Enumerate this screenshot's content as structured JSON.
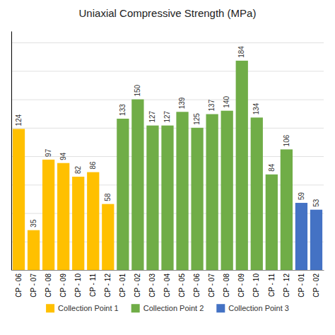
{
  "chart_data": {
    "type": "bar",
    "title": "Uniaxial Compressive Strength (MPa)",
    "categories": [
      "CP - 06",
      "CP - 07",
      "CP - 08",
      "CP - 09",
      "CP - 10",
      "CP - 11",
      "CP - 12",
      "CP - 01",
      "CP - 02",
      "CP - 03",
      "CP - 04",
      "CP - 05",
      "CP - 06",
      "CP - 07",
      "CP - 08",
      "CP - 09",
      "CP - 10",
      "CP - 11",
      "CP - 12",
      "CP - 01",
      "CP - 02"
    ],
    "series": [
      {
        "name": "Collection Point 1",
        "color": "#FFC000",
        "values": [
          124,
          35,
          97,
          94,
          82,
          86,
          58,
          null,
          null,
          null,
          null,
          null,
          null,
          null,
          null,
          null,
          null,
          null,
          null,
          null,
          null
        ]
      },
      {
        "name": "Collection Point 2",
        "color": "#70AD47",
        "values": [
          null,
          null,
          null,
          null,
          null,
          null,
          null,
          133,
          150,
          127,
          127,
          139,
          125,
          137,
          140,
          184,
          134,
          84,
          106,
          null,
          null
        ]
      },
      {
        "name": "Collection Point 3",
        "color": "#4472C4",
        "values": [
          null,
          null,
          null,
          null,
          null,
          null,
          null,
          null,
          null,
          null,
          null,
          null,
          null,
          null,
          null,
          null,
          null,
          null,
          null,
          59,
          53
        ]
      }
    ],
    "ylim": [
      0,
      210
    ],
    "yticks": [
      0,
      25,
      50,
      75,
      100,
      125,
      150,
      175,
      200
    ],
    "grid": true,
    "legend": "bottom",
    "data_labels": true,
    "tick_labels": "x"
  }
}
